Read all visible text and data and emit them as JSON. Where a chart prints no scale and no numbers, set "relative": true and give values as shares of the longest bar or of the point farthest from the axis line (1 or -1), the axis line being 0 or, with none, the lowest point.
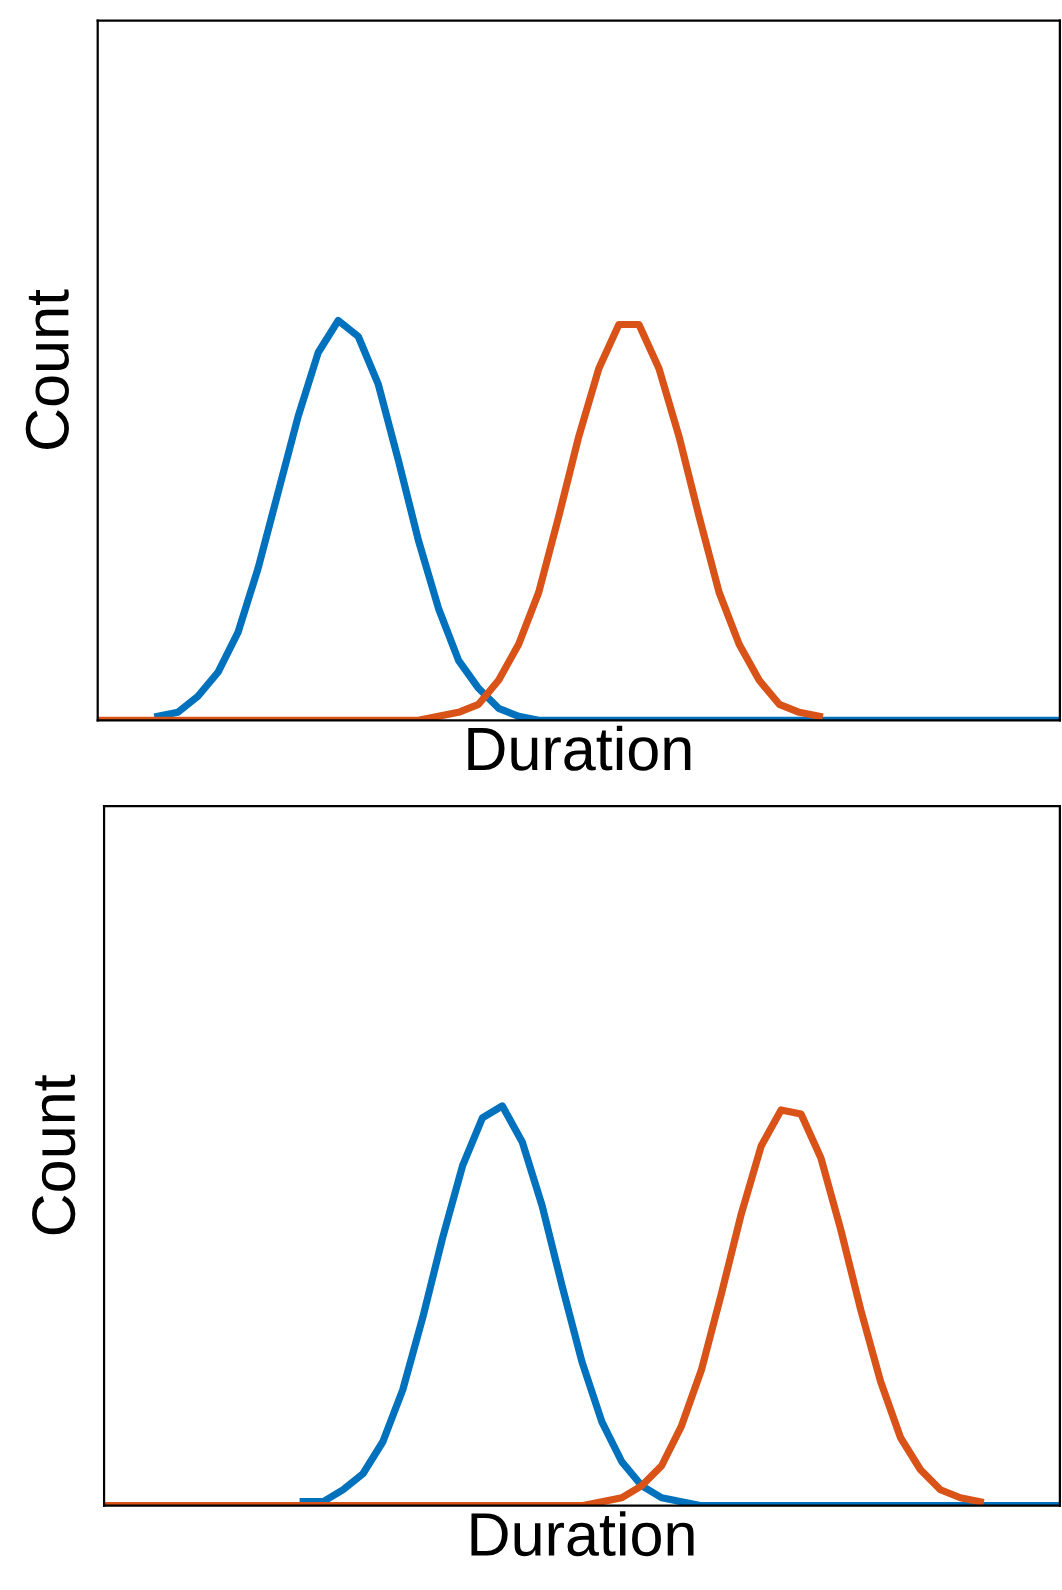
{
  "chart_data": [
    {
      "type": "line",
      "relative": true,
      "xlabel": "Duration",
      "ylabel": "Count",
      "tick_labels": false,
      "categories": [
        null,
        null,
        null,
        null,
        null,
        null,
        null,
        null,
        null,
        null,
        null,
        null,
        null,
        null,
        null,
        null,
        null,
        null,
        null,
        null,
        null,
        null,
        null,
        null,
        null,
        null,
        null,
        null,
        null,
        null,
        null,
        null,
        null,
        null,
        null,
        null,
        null,
        null,
        null,
        null,
        null,
        null,
        null,
        null,
        null,
        null,
        null,
        null,
        null
      ],
      "series": [
        {
          "color": "#0072bd",
          "values": [
            null,
            null,
            null,
            0.01,
            0.02,
            0.06,
            0.12,
            0.22,
            0.38,
            0.57,
            0.76,
            0.92,
            1.0,
            0.96,
            0.84,
            0.65,
            0.45,
            0.28,
            0.15,
            0.08,
            0.03,
            0.01,
            0,
            0,
            0,
            0,
            0,
            0,
            0,
            0,
            0,
            0,
            0,
            0,
            0,
            0,
            0,
            0,
            0,
            0,
            0,
            0,
            0,
            0,
            0,
            0,
            0,
            0,
            0
          ]
        },
        {
          "color": "#d95319",
          "values": [
            0,
            0,
            0,
            0,
            0,
            0,
            0,
            0,
            0,
            0,
            0,
            0,
            0,
            0,
            0,
            0,
            0,
            0.01,
            0.02,
            0.04,
            0.1,
            0.19,
            0.32,
            0.51,
            0.71,
            0.88,
            0.99,
            0.99,
            0.88,
            0.71,
            0.51,
            0.32,
            0.19,
            0.1,
            0.04,
            0.02,
            0.01,
            null,
            null,
            null,
            null,
            null,
            null,
            null,
            null,
            null,
            null,
            null,
            null
          ]
        }
      ]
    },
    {
      "type": "line",
      "relative": true,
      "xlabel": "Duration",
      "ylabel": "Count",
      "tick_labels": false,
      "categories": [
        null,
        null,
        null,
        null,
        null,
        null,
        null,
        null,
        null,
        null,
        null,
        null,
        null,
        null,
        null,
        null,
        null,
        null,
        null,
        null,
        null,
        null,
        null,
        null,
        null,
        null,
        null,
        null,
        null,
        null,
        null,
        null,
        null,
        null,
        null,
        null,
        null,
        null,
        null,
        null,
        null,
        null,
        null,
        null,
        null,
        null,
        null,
        null,
        null
      ],
      "series": [
        {
          "color": "#0072bd",
          "values": [
            null,
            null,
            null,
            null,
            null,
            null,
            null,
            null,
            null,
            null,
            0.01,
            0.01,
            0.04,
            0.08,
            0.16,
            0.29,
            0.47,
            0.67,
            0.85,
            0.97,
            1.0,
            0.91,
            0.75,
            0.55,
            0.36,
            0.21,
            0.11,
            0.05,
            0.02,
            0.01,
            0,
            0,
            0,
            0,
            0,
            0,
            0,
            0,
            0,
            0,
            0,
            0,
            0,
            0,
            0,
            0,
            0,
            0,
            0
          ]
        },
        {
          "color": "#d95319",
          "values": [
            0,
            0,
            0,
            0,
            0,
            0,
            0,
            0,
            0,
            0,
            0,
            0,
            0,
            0,
            0,
            0,
            0,
            0,
            0,
            0,
            0,
            0,
            0,
            0,
            0,
            0.01,
            0.02,
            0.05,
            0.1,
            0.2,
            0.34,
            0.53,
            0.73,
            0.9,
            0.99,
            0.98,
            0.87,
            0.69,
            0.49,
            0.31,
            0.17,
            0.09,
            0.04,
            0.02,
            0.01,
            null,
            null,
            null,
            null
          ]
        }
      ]
    }
  ]
}
